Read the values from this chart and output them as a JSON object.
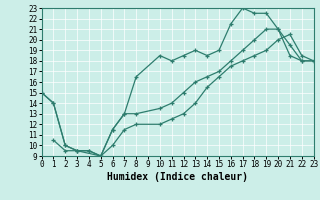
{
  "xlabel": "Humidex (Indice chaleur)",
  "bg_color": "#cceee8",
  "line_color": "#2e7d6e",
  "grid_color": "#aadddd",
  "xlim": [
    0,
    23
  ],
  "ylim": [
    9,
    23
  ],
  "xticks": [
    0,
    1,
    2,
    3,
    4,
    5,
    6,
    7,
    8,
    9,
    10,
    11,
    12,
    13,
    14,
    15,
    16,
    17,
    18,
    19,
    20,
    21,
    22,
    23
  ],
  "yticks": [
    9,
    10,
    11,
    12,
    13,
    14,
    15,
    16,
    17,
    18,
    19,
    20,
    21,
    22,
    23
  ],
  "line1_x": [
    0,
    1,
    2,
    3,
    4,
    5,
    6,
    7,
    8,
    10,
    11,
    12,
    13,
    14,
    15,
    16,
    17,
    18,
    19,
    20,
    21,
    22,
    23
  ],
  "line1_y": [
    15,
    14,
    10,
    9.5,
    9.5,
    9,
    11.5,
    13,
    16.5,
    18.5,
    18,
    18.5,
    19,
    18.5,
    19,
    21.5,
    23,
    22.5,
    22.5,
    21,
    19.5,
    18,
    18
  ],
  "line2_x": [
    0,
    1,
    2,
    3,
    4,
    5,
    6,
    7,
    8,
    10,
    11,
    12,
    13,
    14,
    15,
    16,
    17,
    18,
    19,
    20,
    21,
    22,
    23
  ],
  "line2_y": [
    15,
    14,
    10,
    9.5,
    9.5,
    9,
    11.5,
    13,
    13,
    13.5,
    14,
    15,
    16,
    16.5,
    17,
    18,
    19,
    20,
    21,
    21,
    18.5,
    18,
    18
  ],
  "line3_x": [
    1,
    2,
    3,
    5,
    6,
    7,
    8,
    10,
    11,
    12,
    13,
    14,
    15,
    16,
    17,
    18,
    19,
    20,
    21,
    22,
    23
  ],
  "line3_y": [
    10.5,
    9.5,
    9.5,
    9,
    10,
    11.5,
    12,
    12,
    12.5,
    13,
    14,
    15.5,
    16.5,
    17.5,
    18,
    18.5,
    19,
    20,
    20.5,
    18.5,
    18
  ],
  "tick_fontsize": 5.5,
  "xlabel_fontsize": 7,
  "linewidth": 0.9,
  "markersize": 3
}
